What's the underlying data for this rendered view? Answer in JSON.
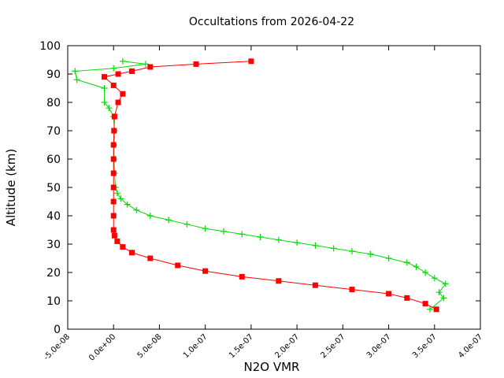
{
  "chart_data": {
    "type": "scatter",
    "title": "Occultations from 2026-04-22",
    "xlabel": "N2O VMR",
    "ylabel": "Altitude (km)",
    "xlim": [
      -5e-08,
      4e-07
    ],
    "ylim": [
      0,
      100
    ],
    "grid": false,
    "legend": "none",
    "x_ticks": [
      {
        "value": -5e-08,
        "label": "-5.0e-08"
      },
      {
        "value": 0,
        "label": "0.0e+00"
      },
      {
        "value": 5e-08,
        "label": "5.0e-08"
      },
      {
        "value": 1e-07,
        "label": "1.0e-07"
      },
      {
        "value": 1.5e-07,
        "label": "1.5e-07"
      },
      {
        "value": 2e-07,
        "label": "2.0e-07"
      },
      {
        "value": 2.5e-07,
        "label": "2.5e-07"
      },
      {
        "value": 3e-07,
        "label": "3.0e-07"
      },
      {
        "value": 3.5e-07,
        "label": "3.5e-07"
      },
      {
        "value": 4e-07,
        "label": "4.0e-07"
      }
    ],
    "y_ticks": [
      {
        "value": 0,
        "label": "0"
      },
      {
        "value": 10,
        "label": "10"
      },
      {
        "value": 20,
        "label": "20"
      },
      {
        "value": 30,
        "label": "30"
      },
      {
        "value": 40,
        "label": "40"
      },
      {
        "value": 50,
        "label": "50"
      },
      {
        "value": 60,
        "label": "60"
      },
      {
        "value": 70,
        "label": "70"
      },
      {
        "value": 80,
        "label": "80"
      },
      {
        "value": 90,
        "label": "90"
      },
      {
        "value": 100,
        "label": "100"
      }
    ],
    "series": [
      {
        "marker": "plus",
        "color": "#00dd00",
        "points": [
          [
            3.45e-07,
            7
          ],
          [
            3.6e-07,
            11
          ],
          [
            3.55e-07,
            13
          ],
          [
            3.62e-07,
            16
          ],
          [
            3.5e-07,
            18
          ],
          [
            3.4e-07,
            20
          ],
          [
            3.3e-07,
            22
          ],
          [
            3.2e-07,
            23.5
          ],
          [
            3e-07,
            25
          ],
          [
            2.8e-07,
            26.5
          ],
          [
            2.6e-07,
            27.5
          ],
          [
            2.4e-07,
            28.5
          ],
          [
            2.2e-07,
            29.5
          ],
          [
            2e-07,
            30.5
          ],
          [
            1.8e-07,
            31.5
          ],
          [
            1.6e-07,
            32.5
          ],
          [
            1.4e-07,
            33.5
          ],
          [
            1.2e-07,
            34.5
          ],
          [
            1e-07,
            35.5
          ],
          [
            8e-08,
            37
          ],
          [
            6e-08,
            38.5
          ],
          [
            4e-08,
            40
          ],
          [
            2.5e-08,
            42
          ],
          [
            1.5e-08,
            44
          ],
          [
            8e-09,
            46
          ],
          [
            4e-09,
            48
          ],
          [
            2e-09,
            50
          ],
          [
            1e-09,
            55
          ],
          [
            5e-10,
            60
          ],
          [
            5e-10,
            65
          ],
          [
            1e-09,
            70
          ],
          [
            0,
            75
          ],
          [
            -5e-09,
            78
          ],
          [
            -1e-08,
            80
          ],
          [
            -1e-08,
            85
          ],
          [
            -4e-08,
            88
          ],
          [
            -4.2e-08,
            91
          ],
          [
            0,
            92
          ],
          [
            3.5e-08,
            93.5
          ],
          [
            1e-08,
            94.5
          ]
        ]
      },
      {
        "marker": "square",
        "color": "#ff0000",
        "points": [
          [
            3.52e-07,
            7
          ],
          [
            3.4e-07,
            9
          ],
          [
            3.2e-07,
            11
          ],
          [
            3e-07,
            12.5
          ],
          [
            2.6e-07,
            14
          ],
          [
            2.2e-07,
            15.5
          ],
          [
            1.8e-07,
            17
          ],
          [
            1.4e-07,
            18.5
          ],
          [
            1e-07,
            20.5
          ],
          [
            7e-08,
            22.5
          ],
          [
            4e-08,
            25
          ],
          [
            2e-08,
            27
          ],
          [
            1e-08,
            29
          ],
          [
            4e-09,
            31
          ],
          [
            1e-09,
            33
          ],
          [
            0,
            35
          ],
          [
            0,
            40
          ],
          [
            0,
            45
          ],
          [
            0,
            50
          ],
          [
            0,
            55
          ],
          [
            0,
            60
          ],
          [
            0,
            65
          ],
          [
            5e-10,
            70
          ],
          [
            1e-09,
            75
          ],
          [
            5e-09,
            80
          ],
          [
            1e-08,
            83
          ],
          [
            0,
            86
          ],
          [
            -1e-08,
            89
          ],
          [
            5e-09,
            90
          ],
          [
            2e-08,
            91
          ],
          [
            4e-08,
            92.5
          ],
          [
            9e-08,
            93.5
          ],
          [
            1.5e-07,
            94.5
          ]
        ]
      }
    ]
  }
}
